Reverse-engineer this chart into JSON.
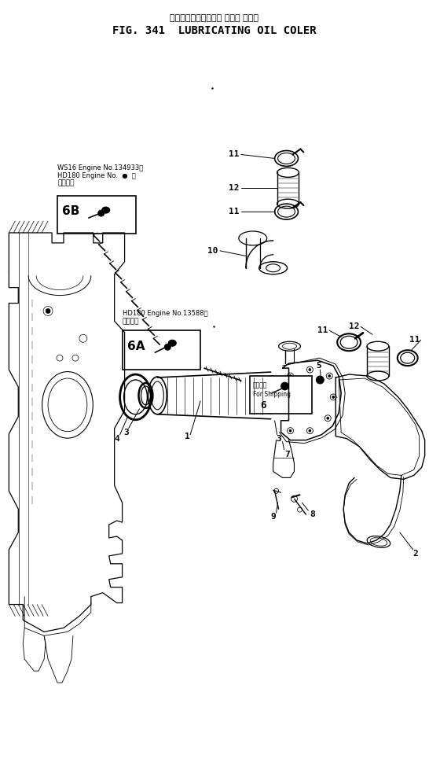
{
  "title_jp": "ルーブリケーティング オイル クーラ",
  "title_en": "FIG. 341  LUBRICATING OIL COLER",
  "bg_color": "#ffffff",
  "fig_width": 5.46,
  "fig_height": 9.74,
  "dpi": 100,
  "note_6b_line1": "適用号機",
  "note_6b_line2": "HD180 Engine No.  ●  ～",
  "note_6b_line3": "WS16 Engine No.134933～",
  "note_6a_line1": "適用号機",
  "note_6a_line2": "HD180 Engine No.13588～",
  "note_6_line1": "装備部品",
  "note_6_line2": "For Shipping",
  "line_color": "#000000",
  "title_fontsize_en": 10,
  "title_fontsize_jp": 8
}
